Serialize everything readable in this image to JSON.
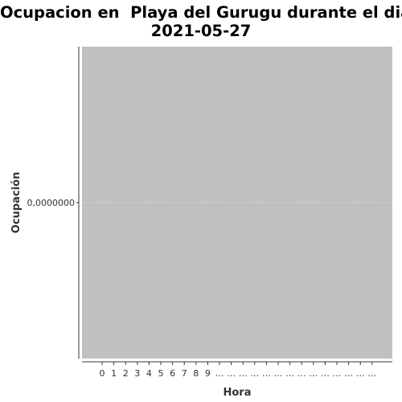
{
  "chart_data": {
    "type": "line",
    "title_line1": "Ocupacion en  Playa del Gurugu durante el dia",
    "title_line2": "2021-05-27",
    "xlabel": "Hora",
    "ylabel": "Ocupación",
    "x_tick_labels": [
      "0",
      "1",
      "2",
      "3",
      "4",
      "5",
      "6",
      "7",
      "8",
      "9",
      "…",
      "…",
      "…",
      "…",
      "…",
      "…",
      "…",
      "…",
      "…",
      "…",
      "…",
      "…",
      "…",
      "…"
    ],
    "y_tick_labels": [
      "0,0000000"
    ],
    "y_ticks": [
      0
    ],
    "ylim": [
      -0.05,
      0.05
    ],
    "series": [],
    "grid": true,
    "legend": "none",
    "colors": {
      "panel_background": "#c0c0c0",
      "grid": "#d9d9d9",
      "axis": "#333333"
    }
  }
}
